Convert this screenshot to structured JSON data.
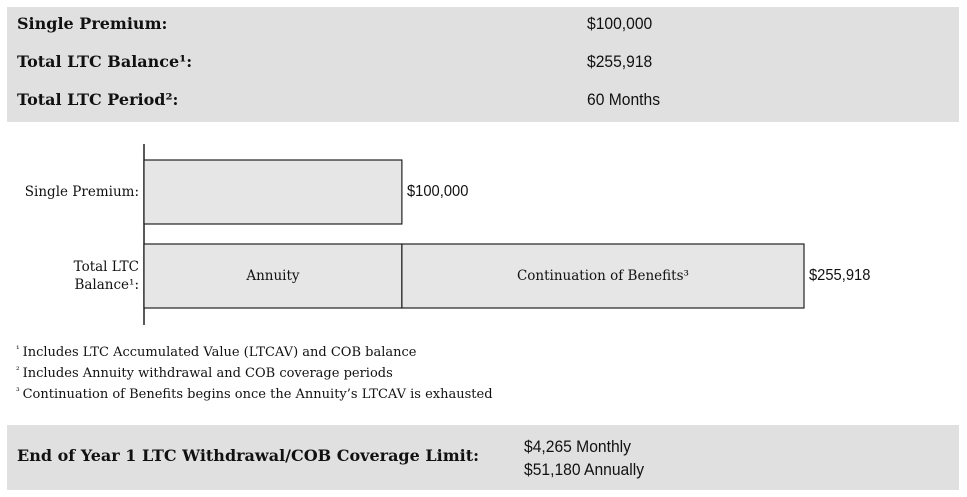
{
  "summary": {
    "rows": [
      {
        "label": "Single Premium:",
        "value": "$100,000"
      },
      {
        "label": "Total LTC Balance¹:",
        "value": "$255,918"
      },
      {
        "label": "Total LTC Period²:",
        "value": "60 Months"
      }
    ]
  },
  "chart_data": {
    "type": "bar",
    "orientation": "horizontal",
    "stacked": true,
    "categories": [
      "Single Premium:",
      "Total LTC Balance¹:"
    ],
    "category_lines": [
      [
        "Single Premium:"
      ],
      [
        "Total LTC",
        "Balance¹:"
      ]
    ],
    "value_labels": [
      "$100,000",
      "$255,918"
    ],
    "totals": [
      100000,
      255918
    ],
    "segments": [
      [
        {
          "name": "",
          "value": 100000
        }
      ],
      [
        {
          "name": "Annuity",
          "value": 100000
        },
        {
          "name": "Continuation of Benefits³",
          "value": 155918
        }
      ]
    ],
    "xlim": [
      0,
      255918
    ],
    "bar_fill": "#e6e6e6",
    "bar_stroke": "#222222"
  },
  "footnotes": [
    {
      "mark": "¹",
      "text": "Includes LTC Accumulated Value (LTCAV) and COB balance"
    },
    {
      "mark": "²",
      "text": "Includes Annuity withdrawal and COB coverage periods"
    },
    {
      "mark": "³",
      "text": "Continuation of Benefits begins once the Annuity’s LTCAV is exhausted"
    }
  ],
  "limit": {
    "label": "End of Year 1 LTC Withdrawal/COB Coverage Limit:",
    "monthly": "$4,265 Monthly",
    "annually": "$51,180 Annually"
  },
  "colors": {
    "panel": "#e0e0e0",
    "bar": "#e6e6e6",
    "stroke": "#222222"
  }
}
